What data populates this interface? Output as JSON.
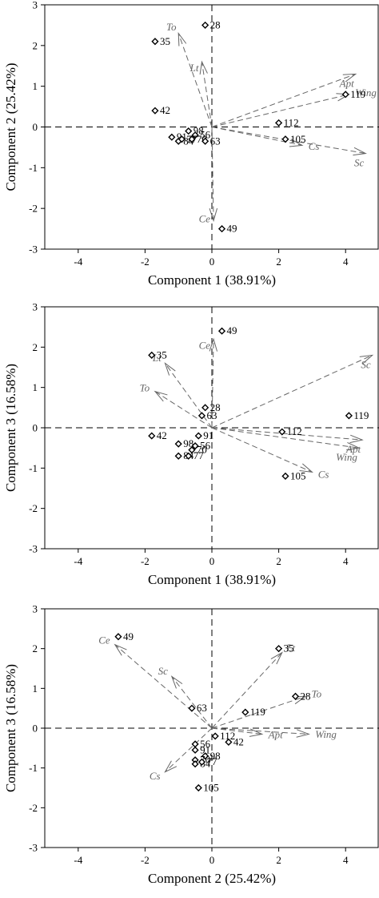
{
  "chart_data": [
    {
      "type": "scatter",
      "title": "",
      "xlabel": "Component 1 (38.91%)",
      "ylabel": "Component 2 (25.42%)",
      "xlim": [
        -5,
        5
      ],
      "ylim": [
        -3,
        3
      ],
      "xticks": [
        -4,
        -2,
        0,
        2,
        4
      ],
      "yticks": [
        -3,
        -2,
        -1,
        0,
        1,
        2,
        3
      ],
      "points": [
        {
          "label": "28",
          "x": -0.2,
          "y": 2.5
        },
        {
          "label": "35",
          "x": -1.7,
          "y": 2.1
        },
        {
          "label": "42",
          "x": -1.7,
          "y": 0.4
        },
        {
          "label": "91",
          "x": -1.2,
          "y": -0.25
        },
        {
          "label": "98",
          "x": -0.7,
          "y": -0.1
        },
        {
          "label": "56",
          "x": -0.5,
          "y": -0.2
        },
        {
          "label": "84",
          "x": -1.0,
          "y": -0.35
        },
        {
          "label": "77",
          "x": -0.9,
          "y": -0.3
        },
        {
          "label": "70",
          "x": -0.6,
          "y": -0.3
        },
        {
          "label": "63",
          "x": -0.2,
          "y": -0.35
        },
        {
          "label": "49",
          "x": 0.3,
          "y": -2.5
        },
        {
          "label": "112",
          "x": 2.0,
          "y": 0.1
        },
        {
          "label": "105",
          "x": 2.2,
          "y": -0.3
        },
        {
          "label": "119",
          "x": 4.0,
          "y": 0.8
        }
      ],
      "vectors": [
        {
          "label": "To",
          "x": -1.0,
          "y": 2.3
        },
        {
          "label": "Lt",
          "x": -0.3,
          "y": 1.6
        },
        {
          "label": "Apt",
          "x": 4.3,
          "y": 1.3
        },
        {
          "label": "Wing",
          "x": 4.1,
          "y": 0.8
        },
        {
          "label": "Sc",
          "x": 4.6,
          "y": -0.65
        },
        {
          "label": "Cs",
          "x": 2.7,
          "y": -0.45
        },
        {
          "label": "Ce",
          "x": 0.05,
          "y": -2.3
        }
      ]
    },
    {
      "type": "scatter",
      "title": "",
      "xlabel": "Component 1 (38.91%)",
      "ylabel": "Component 3 (16.58%)",
      "xlim": [
        -5,
        5
      ],
      "ylim": [
        -3,
        3
      ],
      "xticks": [
        -4,
        -2,
        0,
        2,
        4
      ],
      "yticks": [
        -3,
        -2,
        -1,
        0,
        1,
        2,
        3
      ],
      "points": [
        {
          "label": "49",
          "x": 0.3,
          "y": 2.4
        },
        {
          "label": "35",
          "x": -1.8,
          "y": 1.8
        },
        {
          "label": "28",
          "x": -0.2,
          "y": 0.5
        },
        {
          "label": "63",
          "x": -0.3,
          "y": 0.3
        },
        {
          "label": "42",
          "x": -1.8,
          "y": -0.2
        },
        {
          "label": "91",
          "x": -0.4,
          "y": -0.2
        },
        {
          "label": "98",
          "x": -1.0,
          "y": -0.4
        },
        {
          "label": "56",
          "x": -0.5,
          "y": -0.45
        },
        {
          "label": "70",
          "x": -0.6,
          "y": -0.55
        },
        {
          "label": "84",
          "x": -1.0,
          "y": -0.7
        },
        {
          "label": "77",
          "x": -0.7,
          "y": -0.7
        },
        {
          "label": "112",
          "x": 2.1,
          "y": -0.1
        },
        {
          "label": "105",
          "x": 2.2,
          "y": -1.2
        },
        {
          "label": "119",
          "x": 4.1,
          "y": 0.3
        }
      ],
      "vectors": [
        {
          "label": "Ce",
          "x": 0.05,
          "y": 2.2
        },
        {
          "label": "Lt",
          "x": -1.4,
          "y": 1.6
        },
        {
          "label": "To",
          "x": -1.7,
          "y": 0.9
        },
        {
          "label": "Sc",
          "x": 4.8,
          "y": 1.8
        },
        {
          "label": "Apt",
          "x": 4.5,
          "y": -0.3
        },
        {
          "label": "Wing",
          "x": 4.4,
          "y": -0.5
        },
        {
          "label": "Cs",
          "x": 3.0,
          "y": -1.1
        }
      ]
    },
    {
      "type": "scatter",
      "title": "",
      "xlabel": "Component 2 (25.42%)",
      "ylabel": "Component 3 (16.58%)",
      "xlim": [
        -5,
        5
      ],
      "ylim": [
        -3,
        3
      ],
      "xticks": [
        -4,
        -2,
        0,
        2,
        4
      ],
      "yticks": [
        -3,
        -2,
        -1,
        0,
        1,
        2,
        3
      ],
      "points": [
        {
          "label": "49",
          "x": -2.8,
          "y": 2.3
        },
        {
          "label": "35",
          "x": 2.0,
          "y": 2.0
        },
        {
          "label": "28",
          "x": 2.5,
          "y": 0.8
        },
        {
          "label": "119",
          "x": 1.0,
          "y": 0.4
        },
        {
          "label": "63",
          "x": -0.6,
          "y": 0.5
        },
        {
          "label": "112",
          "x": 0.1,
          "y": -0.2
        },
        {
          "label": "42",
          "x": 0.5,
          "y": -0.35
        },
        {
          "label": "56",
          "x": -0.5,
          "y": -0.4
        },
        {
          "label": "91",
          "x": -0.5,
          "y": -0.55
        },
        {
          "label": "98",
          "x": -0.2,
          "y": -0.7
        },
        {
          "label": "70",
          "x": -0.5,
          "y": -0.8
        },
        {
          "label": "84",
          "x": -0.5,
          "y": -0.9
        },
        {
          "label": "77",
          "x": -0.3,
          "y": -0.85
        },
        {
          "label": "105",
          "x": -0.4,
          "y": -1.5
        }
      ],
      "vectors": [
        {
          "label": "Ce",
          "x": -2.9,
          "y": 2.1
        },
        {
          "label": "Sc",
          "x": -1.2,
          "y": 1.3
        },
        {
          "label": "Lt",
          "x": 2.1,
          "y": 1.9
        },
        {
          "label": "To",
          "x": 2.8,
          "y": 0.8
        },
        {
          "label": "Apt",
          "x": 1.5,
          "y": -0.15
        },
        {
          "label": "Wing",
          "x": 2.9,
          "y": -0.15
        },
        {
          "label": "Cs",
          "x": -1.4,
          "y": -1.1
        }
      ]
    }
  ]
}
